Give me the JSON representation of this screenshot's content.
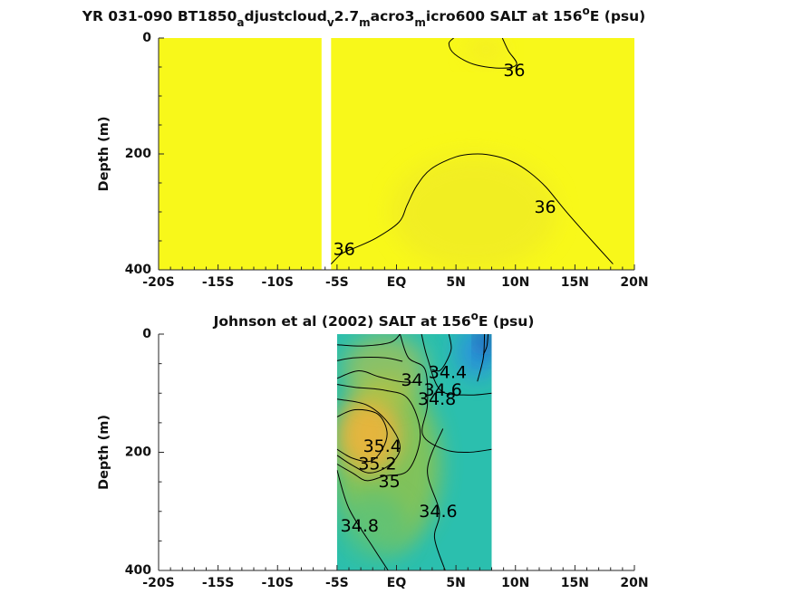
{
  "chart_data": [
    {
      "type": "heatmap",
      "title": {
        "parts": [
          {
            "t": "YR 031-090 BT1850"
          },
          {
            "t": "a",
            "sub": true
          },
          {
            "t": "djustcloud"
          },
          {
            "t": "v",
            "sub": true
          },
          {
            "t": "2.7"
          },
          {
            "t": "m",
            "sub": true
          },
          {
            "t": "acro3"
          },
          {
            "t": "m",
            "sub": true
          },
          {
            "t": "icro600 SALT at 156"
          },
          {
            "t": "o",
            "sup": true
          },
          {
            "t": "E (psu)"
          }
        ]
      },
      "xlabel": "",
      "ylabel": "Depth (m)",
      "xlim": [
        -20,
        20
      ],
      "ylim": [
        0,
        400
      ],
      "y_reversed": true,
      "x_tick_values": [
        -20,
        -15,
        -10,
        -5,
        0,
        5,
        10,
        15,
        20
      ],
      "x_tick_labels": [
        "-20S",
        "-15S",
        "-10S",
        "-5S",
        "EQ",
        "5N",
        "10N",
        "15N",
        "20N"
      ],
      "y_tick_values": [
        0,
        200,
        400
      ],
      "y_tick_labels": [
        "0",
        "200",
        "400"
      ],
      "background_color": "#f8f81a",
      "data_gaps": [
        {
          "x_from": -6.3,
          "x_to": -5.5
        }
      ],
      "contours": [
        {
          "level": 36,
          "label": "36",
          "points": [
            [
              -5.5,
              390
            ],
            [
              -4.6,
              372
            ],
            [
              -3.5,
              362
            ],
            [
              -1.7,
              345
            ],
            [
              0.2,
              318
            ],
            [
              0.9,
              288
            ],
            [
              1.7,
              255
            ],
            [
              2.9,
              226
            ],
            [
              5,
              205
            ],
            [
              6.8,
              200
            ],
            [
              8.4,
              204
            ],
            [
              9.8,
              214
            ],
            [
              11.2,
              232
            ],
            [
              12.6,
              258
            ],
            [
              14.2,
              298
            ],
            [
              16,
              340
            ],
            [
              18.2,
              390
            ]
          ]
        },
        {
          "level": 36,
          "label": "36",
          "points": [
            [
              4.8,
              0
            ],
            [
              4.4,
              10
            ],
            [
              4.9,
              28
            ],
            [
              6.6,
              46
            ],
            [
              8.9,
              52
            ],
            [
              10.1,
              45
            ],
            [
              9.4,
              22
            ],
            [
              8.9,
              0
            ]
          ]
        }
      ],
      "contour_labels": [
        {
          "text": "36",
          "x": -4.4,
          "y": 365
        },
        {
          "text": "36",
          "x": 12.5,
          "y": 292
        },
        {
          "text": "36",
          "x": 9.9,
          "y": 56
        }
      ],
      "field_shading": [
        {
          "x": 6.5,
          "y": 300,
          "rx": 7.0,
          "ry": 100,
          "color": "#ece62a",
          "opacity": 0.55
        },
        {
          "x": 7.5,
          "y": 20,
          "rx": 1.6,
          "ry": 20,
          "color": "#f0e62a",
          "opacity": 0.6
        }
      ],
      "colorscale": "parula"
    },
    {
      "type": "heatmap",
      "title": {
        "parts": [
          {
            "t": "Johnson et al (2002) SALT at 156"
          },
          {
            "t": "o",
            "sup": true
          },
          {
            "t": "E (psu)"
          }
        ]
      },
      "xlabel": "",
      "ylabel": "Depth (m)",
      "xlim": [
        -20,
        20
      ],
      "ylim": [
        0,
        400
      ],
      "y_reversed": true,
      "x_tick_values": [
        -20,
        -15,
        -10,
        -5,
        0,
        5,
        10,
        15,
        20
      ],
      "x_tick_labels": [
        "-20S",
        "-15S",
        "-10S",
        "-5S",
        "EQ",
        "5N",
        "10N",
        "15N",
        "20N"
      ],
      "y_tick_values": [
        0,
        200,
        400
      ],
      "y_tick_labels": [
        "0",
        "200",
        "400"
      ],
      "data_extent_x": [
        -5,
        8
      ],
      "background_color": "#2bbfae",
      "field_shading": [
        {
          "x": -0.8,
          "y": 220,
          "rx": 4.5,
          "ry": 150,
          "color": "#9dc43f",
          "opacity": 0.75
        },
        {
          "x": -2.3,
          "y": 170,
          "rx": 2.6,
          "ry": 65,
          "color": "#f0b43a",
          "opacity": 0.9
        },
        {
          "x": -1.0,
          "y": 60,
          "rx": 3.5,
          "ry": 60,
          "color": "#c6c33c",
          "opacity": 0.6
        },
        {
          "x": 6.8,
          "y": 30,
          "rx": 1.8,
          "ry": 45,
          "color": "#2b8fe0",
          "opacity": 0.85
        },
        {
          "x": 7.5,
          "y": 10,
          "rx": 0.6,
          "ry": 25,
          "color": "#1d3ea8",
          "opacity": 0.9
        },
        {
          "x": -2.0,
          "y": 330,
          "rx": 3.0,
          "ry": 60,
          "color": "#47c28a",
          "opacity": 0.5
        }
      ],
      "colorscale": "parula",
      "contours": [
        {
          "level": 34.4,
          "label": "34.4",
          "points": [
            [
              4.4,
              0
            ],
            [
              4.6,
              25
            ],
            [
              4.1,
              50
            ],
            [
              3.6,
              62
            ],
            [
              3.0,
              60
            ]
          ]
        },
        {
          "level": 34.6,
          "label": "34.6",
          "points": [
            [
              2.1,
              0
            ],
            [
              2.6,
              40
            ],
            [
              3.7,
              95
            ],
            [
              6.0,
              103
            ],
            [
              8,
              100
            ]
          ]
        },
        {
          "level": 34.6,
          "label": "34.6",
          "points": [
            [
              3.9,
              160
            ],
            [
              2.6,
              230
            ],
            [
              3.6,
              300
            ],
            [
              3.2,
              345
            ],
            [
              4.1,
              400
            ]
          ]
        },
        {
          "level": 34.8,
          "label": "34.8",
          "points": [
            [
              0.3,
              0
            ],
            [
              1.0,
              40
            ],
            [
              2.4,
              60
            ],
            [
              2.6,
              120
            ],
            [
              2.2,
              170
            ],
            [
              4.0,
              195
            ],
            [
              6.0,
              200
            ],
            [
              8,
              195
            ]
          ]
        },
        {
          "level": 34.8,
          "label": "34.8",
          "points": [
            [
              -5,
              230
            ],
            [
              -4.0,
              295
            ],
            [
              -2.0,
              360
            ],
            [
              -0.7,
              400
            ]
          ]
        },
        {
          "level": 35,
          "label": "35",
          "points": [
            [
              -5,
              85
            ],
            [
              -3.5,
              90
            ],
            [
              -1.0,
              95
            ],
            [
              1.0,
              110
            ],
            [
              2.0,
              170
            ],
            [
              1.0,
              230
            ],
            [
              -1.0,
              240
            ],
            [
              -2.5,
              248
            ],
            [
              -3.7,
              235
            ],
            [
              -5,
              220
            ]
          ]
        },
        {
          "level": 35.2,
          "label": "35.2",
          "points": [
            [
              -5,
              110
            ],
            [
              -2.5,
              120
            ],
            [
              -0.7,
              150
            ],
            [
              0.3,
              190
            ],
            [
              -0.5,
              220
            ],
            [
              -2.2,
              235
            ],
            [
              -3.7,
              222
            ],
            [
              -5,
              205
            ]
          ]
        },
        {
          "level": 35.4,
          "label": "35.4",
          "points": [
            [
              -5,
              140
            ],
            [
              -3.5,
              128
            ],
            [
              -1.6,
              135
            ],
            [
              -0.8,
              165
            ],
            [
              -1.2,
              195
            ],
            [
              -2.2,
              215
            ],
            [
              -3.7,
              210
            ],
            [
              -5,
              195
            ]
          ]
        },
        {
          "level": 35.6,
          "label": "",
          "points": [
            [
              -5,
              75
            ],
            [
              -3.2,
              62
            ],
            [
              -1.5,
              72
            ],
            [
              0.2,
              80
            ],
            [
              1.8,
              82
            ]
          ]
        },
        {
          "level": 35.6,
          "label": "",
          "points": [
            [
              -5,
              45
            ],
            [
              -3.5,
              40
            ],
            [
              -1.0,
              40
            ],
            [
              0.5,
              46
            ]
          ]
        },
        {
          "level": 35.6,
          "label": "",
          "points": [
            [
              -5,
              18
            ],
            [
              -2.8,
              20
            ],
            [
              -0.5,
              14
            ],
            [
              0.3,
              0
            ]
          ]
        },
        {
          "level": 35.6,
          "label": "",
          "points": [
            [
              7.4,
              0
            ],
            [
              7.3,
              40
            ],
            [
              6.8,
              80
            ]
          ]
        },
        {
          "level": 35.6,
          "label": "",
          "points": [
            [
              7.7,
              0
            ],
            [
              7.6,
              20
            ],
            [
              7.3,
              35
            ]
          ]
        }
      ],
      "contour_labels": [
        {
          "text": "34.4",
          "x": 4.3,
          "y": 65
        },
        {
          "text": "34.6",
          "x": 3.9,
          "y": 95
        },
        {
          "text": "34.8",
          "x": 3.4,
          "y": 110
        },
        {
          "text": "34",
          "x": 1.3,
          "y": 78
        },
        {
          "text": "35.4",
          "x": -1.2,
          "y": 190
        },
        {
          "text": "35.2",
          "x": -1.6,
          "y": 220
        },
        {
          "text": "35",
          "x": -0.6,
          "y": 250
        },
        {
          "text": "34.8",
          "x": -3.1,
          "y": 325
        },
        {
          "text": "34.6",
          "x": 3.5,
          "y": 300
        }
      ]
    }
  ]
}
